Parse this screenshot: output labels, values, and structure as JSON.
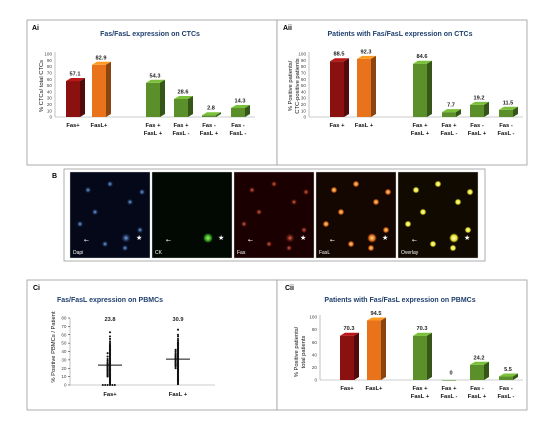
{
  "panels": {
    "ai": {
      "label": "Ai",
      "title": "Fas/FasL expression on CTCs",
      "ylabel": "% CTCs/ total CTCs"
    },
    "aii": {
      "label": "Aii",
      "title": "Patients with Fas/FasL expression on CTCs",
      "ylabel_lines": [
        "% Positive patients/",
        "CTC-positive patients"
      ]
    },
    "b": {
      "label": "B",
      "tiles": [
        "Dapi",
        "CK",
        "Fas",
        "FasL",
        "Overlay"
      ]
    },
    "ci": {
      "label": "Ci",
      "title": "Fas/FasL expression on PBMCs",
      "ylabel": "% Positive PBMCs / Patient"
    },
    "cii": {
      "label": "Cii",
      "title": "Patients with Fas/FasL expression on PBMCs",
      "ylabel_lines": [
        "% Positive patients/",
        "total patients"
      ]
    }
  },
  "colors": {
    "dark_red": "#8b1010",
    "orange": "#e8731a",
    "green": "#5a8f2a",
    "title_blue": "#1f3f6e"
  },
  "chart_data": [
    {
      "id": "ai",
      "type": "bar",
      "title": "Fas/FasL expression on CTCs",
      "ylabel": "% CTCs/ total CTCs",
      "ylim": [
        0,
        100
      ],
      "yticks": [
        0,
        10,
        20,
        30,
        40,
        50,
        60,
        70,
        80,
        90,
        100
      ],
      "categories": [
        [
          "Fas+"
        ],
        [
          "FasL+"
        ],
        [
          "Fas +",
          "FasL +"
        ],
        [
          "Fas +",
          "FasL -"
        ],
        [
          "Fas -",
          "FasL +"
        ],
        [
          "Fas -",
          "FasL -"
        ]
      ],
      "values": [
        57.1,
        82.9,
        54.3,
        28.6,
        2.8,
        14.3
      ],
      "value_labels": [
        "57.1",
        "82.9",
        "54.3",
        "28.6",
        "2.8",
        "14.3"
      ],
      "bar_colors": [
        "dark_red",
        "orange",
        "green",
        "green",
        "green",
        "green"
      ]
    },
    {
      "id": "aii",
      "type": "bar",
      "title": "Patients with Fas/FasL expression on CTCs",
      "ylabel": "% Positive patients/ CTC-positive patients",
      "ylim": [
        0,
        100
      ],
      "yticks": [
        0,
        10,
        20,
        30,
        40,
        50,
        60,
        70,
        80,
        90,
        100
      ],
      "categories": [
        [
          "Fas +"
        ],
        [
          "FasL +"
        ],
        [
          "Fas +",
          "FasL +"
        ],
        [
          "Fas +",
          "FasL -"
        ],
        [
          "Fas -",
          "FasL +"
        ],
        [
          "Fas -",
          "FasL -"
        ]
      ],
      "values": [
        88.5,
        92.3,
        84.6,
        7.7,
        19.2,
        11.5
      ],
      "value_labels": [
        "88.5",
        "92.3",
        "84.6",
        "7.7",
        "19.2",
        "11.5"
      ],
      "bar_colors": [
        "dark_red",
        "orange",
        "green",
        "green",
        "green",
        "green"
      ]
    },
    {
      "id": "ci",
      "type": "scatter",
      "title": "Fas/FasL expression on PBMCs",
      "ylabel": "% Positive PBMCs / Patient",
      "ylim": [
        0,
        80
      ],
      "yticks": [
        0,
        10,
        20,
        30,
        40,
        50,
        60,
        70,
        80
      ],
      "categories": [
        "Fas+",
        "FasL +"
      ],
      "means": [
        23.8,
        30.9
      ],
      "mean_labels": [
        "23.8",
        "30.9"
      ],
      "series": [
        {
          "values": [
            63,
            58,
            55,
            52,
            50,
            48,
            47,
            46,
            45,
            44,
            43,
            42,
            41,
            40,
            39,
            38,
            38,
            37,
            36,
            35,
            34,
            34,
            33,
            32,
            31,
            31,
            30,
            29,
            29,
            28,
            27,
            27,
            26,
            26,
            25,
            25,
            24,
            24,
            23,
            23,
            22,
            22,
            21,
            21,
            20,
            20,
            19,
            19,
            18,
            18,
            17,
            17,
            16,
            16,
            15,
            15,
            14,
            14,
            13,
            13,
            12,
            12,
            11,
            11,
            10,
            10,
            9,
            8,
            7,
            6,
            5,
            4,
            3,
            2,
            1,
            0,
            0,
            0,
            0,
            0,
            0
          ]
        },
        {
          "values": [
            66,
            60,
            58,
            55,
            53,
            51,
            50,
            49,
            48,
            47,
            46,
            45,
            44,
            43,
            42,
            42,
            41,
            40,
            40,
            39,
            38,
            38,
            37,
            36,
            36,
            35,
            35,
            34,
            34,
            33,
            33,
            32,
            32,
            31,
            31,
            30,
            30,
            29,
            29,
            28,
            28,
            27,
            27,
            26,
            26,
            25,
            25,
            24,
            24,
            23,
            23,
            22,
            22,
            21,
            20,
            20,
            19,
            18,
            17,
            16,
            15,
            14,
            13,
            12,
            11,
            10,
            9,
            8,
            7,
            6,
            5,
            4,
            3,
            2,
            1
          ]
        }
      ]
    },
    {
      "id": "cii",
      "type": "bar",
      "title": "Patients with Fas/FasL expression on PBMCs",
      "ylabel": "% Positive patients/ total patients",
      "ylim": [
        0,
        100
      ],
      "yticks": [
        0,
        20,
        40,
        60,
        80,
        100
      ],
      "categories": [
        [
          "Fas+"
        ],
        [
          "FasL+"
        ],
        [
          "Fas +",
          "FasL +"
        ],
        [
          "Fas +",
          "FasL -"
        ],
        [
          "Fas -",
          "FasL +"
        ],
        [
          "Fas -",
          "FasL -"
        ]
      ],
      "values": [
        70.3,
        94.5,
        70.3,
        0,
        24.2,
        5.5
      ],
      "value_labels": [
        "70.3",
        "94.5",
        "70.3",
        "0",
        "24.2",
        "5.5"
      ],
      "bar_colors": [
        "dark_red",
        "orange",
        "green",
        "green",
        "green",
        "green"
      ]
    }
  ]
}
